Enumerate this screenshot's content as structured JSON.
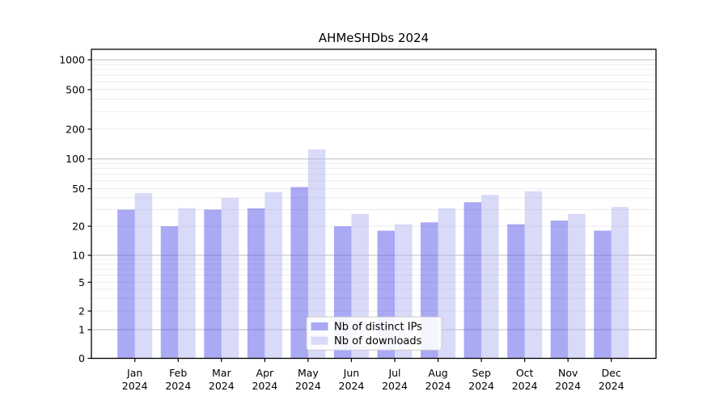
{
  "chart_data": {
    "type": "bar",
    "title": "AHMeSHDbs 2024",
    "year": "2024",
    "months": [
      "Jan",
      "Feb",
      "Mar",
      "Apr",
      "May",
      "Jun",
      "Jul",
      "Aug",
      "Sep",
      "Oct",
      "Nov",
      "Dec"
    ],
    "categories": [
      "Jan 2024",
      "Feb 2024",
      "Mar 2024",
      "Apr 2024",
      "May 2024",
      "Jun 2024",
      "Jul 2024",
      "Aug 2024",
      "Sep 2024",
      "Oct 2024",
      "Nov 2024",
      "Dec 2024"
    ],
    "series": [
      {
        "name": "Nb of distinct IPs",
        "color": "#a9a9f4",
        "fill": "rgba(83,83,233,0.5)",
        "values": [
          30,
          20,
          30,
          31,
          52,
          20,
          18,
          22,
          36,
          21,
          23,
          18
        ]
      },
      {
        "name": "Nb of downloads",
        "color": "#d9d9f8",
        "fill": "rgba(179,179,241,0.5)",
        "values": [
          45,
          31,
          40,
          46,
          125,
          27,
          21,
          31,
          43,
          47,
          27,
          32
        ]
      }
    ],
    "yscale": "symlog",
    "y_ticks": [
      0,
      1,
      2,
      5,
      10,
      20,
      50,
      100,
      200,
      500,
      1000
    ],
    "ylim": [
      0,
      1200
    ],
    "grid": true,
    "legend_position": "lower-center",
    "xlabel": "",
    "ylabel": ""
  },
  "style": {
    "grid_major_color": "#bdbdbd",
    "grid_minor_color": "#ebebeb",
    "axis_color": "#000000",
    "legend_border_color": "#cccccc",
    "legend_bg": "rgba(255,255,255,0.88)"
  }
}
